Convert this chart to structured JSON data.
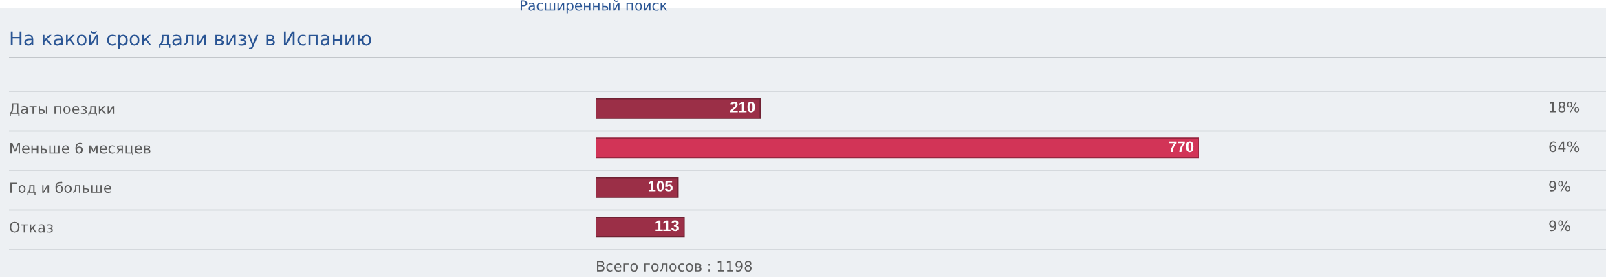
{
  "chart_data": {
    "type": "bar",
    "orientation": "horizontal",
    "title": "На какой срок дали визу в Испанию",
    "categories": [
      "Даты поездки",
      "Меньше 6 месяцев",
      "Год и больше",
      "Отказ"
    ],
    "values": [
      210,
      770,
      105,
      113
    ],
    "colors": [
      "#9b2f47",
      "#d23457",
      "#9b2f47",
      "#9b2f47"
    ],
    "data_labels": true,
    "tick_labels": "y",
    "annotations": [
      "Расширенный поиск",
      "18%",
      "64%",
      "9%",
      "9%",
      "Всего голосов : 1198"
    ]
  }
}
